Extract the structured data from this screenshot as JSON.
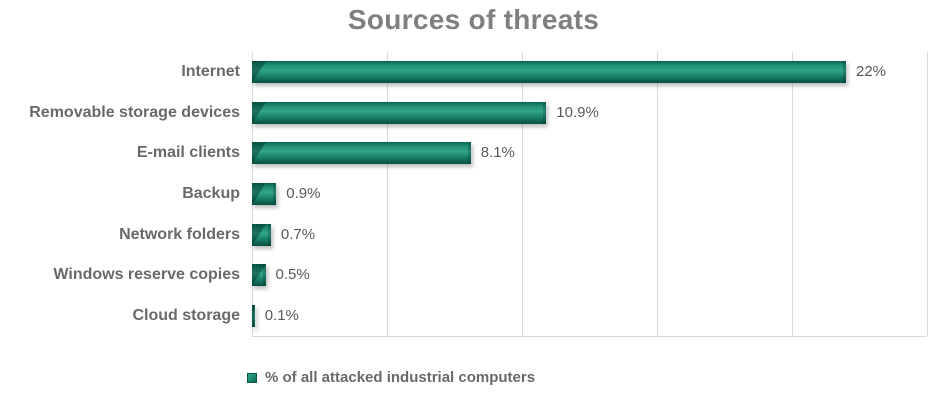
{
  "chart_data": {
    "type": "bar",
    "orientation": "horizontal",
    "title": "Sources of threats",
    "categories": [
      "Internet",
      "Removable storage devices",
      "E-mail clients",
      "Backup",
      "Network folders",
      "Windows reserve copies",
      "Cloud storage"
    ],
    "values": [
      22,
      10.9,
      8.1,
      0.9,
      0.7,
      0.5,
      0.1
    ],
    "value_labels": [
      "22%",
      "10.9%",
      "8.1%",
      "0.9%",
      "0.7%",
      "0.5%",
      "0.1%"
    ],
    "xlabel": "",
    "ylabel": "",
    "xlim": [
      0,
      25
    ],
    "gridline_step": 5,
    "grid": true,
    "axis_tick_labels_shown": false,
    "legend": {
      "label": "% of all attacked industrial computers",
      "position": "bottom"
    }
  },
  "colors": {
    "bar_body": "#1e8c71",
    "bar_light": "#33a489",
    "bar_dark": "#0c6350",
    "bar_edge_dark": "#094f3f",
    "grid": "#d9d9d9",
    "title_text": "#7f7f7f",
    "category_text": "#696969",
    "value_text": "#595959",
    "background": "#ffffff"
  }
}
